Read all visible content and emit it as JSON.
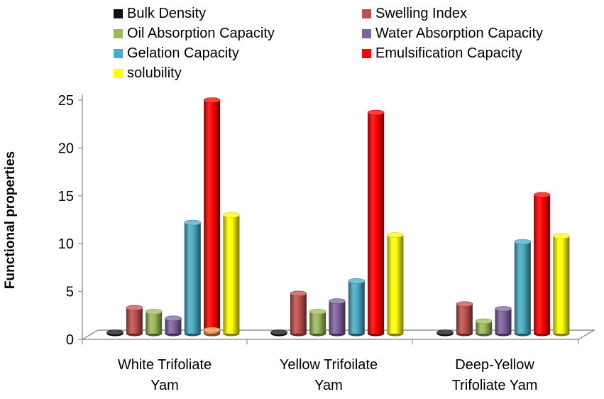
{
  "chart_data": {
    "type": "bar",
    "ylabel": "Functional properties",
    "ylim": [
      0,
      25
    ],
    "yticks": [
      0,
      5,
      10,
      15,
      20,
      25
    ],
    "categories": [
      [
        "White Trifoliate",
        "Yam"
      ],
      [
        "Yellow Trifoilate",
        "Yam"
      ],
      [
        "Deep-Yellow",
        "Trifoliate Yam"
      ]
    ],
    "series": [
      {
        "name": "Bulk Density",
        "color": "#111111",
        "values": [
          0.5,
          0.5,
          0.45
        ]
      },
      {
        "name": "Swelling Index",
        "color": "#c0504d",
        "values": [
          3.3,
          4.8,
          3.7
        ]
      },
      {
        "name": "Oil Absorption Capacity",
        "color": "#9bbb59",
        "values": [
          2.9,
          2.9,
          1.9
        ]
      },
      {
        "name": "Water Absorption Capacity",
        "color": "#8064a2",
        "values": [
          2.2,
          4.0,
          3.2
        ]
      },
      {
        "name": "Gelation Capacity",
        "color": "#4bacc6",
        "values": [
          12.2,
          6.1,
          10.2
        ]
      },
      {
        "name": "Emulsification Capacity",
        "color": "#ff0000",
        "values": [
          25.0,
          23.7,
          15.1
        ]
      },
      {
        "name": "solubility",
        "color": "#ffff00",
        "values": [
          13.0,
          10.9,
          10.8
        ]
      }
    ],
    "extra_bar": {
      "color": "#f79646",
      "category_index": 0,
      "slot_index": 5,
      "value": 1.0
    },
    "legend_position": "top"
  }
}
